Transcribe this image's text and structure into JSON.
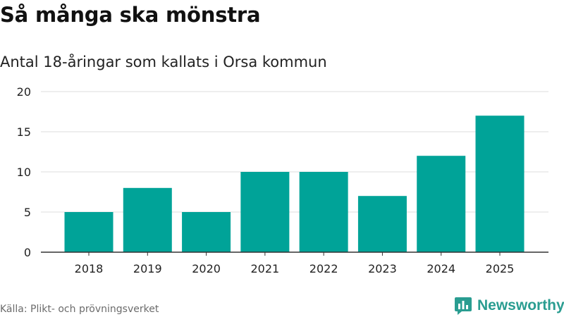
{
  "chart_data": {
    "type": "bar",
    "title": "Så många ska mönstra",
    "subtitle": "Antal 18-åringar som kallats i Orsa kommun",
    "categories": [
      "2018",
      "2019",
      "2020",
      "2021",
      "2022",
      "2023",
      "2024",
      "2025"
    ],
    "values": [
      5,
      8,
      5,
      10,
      10,
      7,
      12,
      17
    ],
    "xlabel": "",
    "ylabel": "",
    "ylim": [
      0,
      20
    ],
    "yticks": [
      0,
      5,
      10,
      15,
      20
    ],
    "grid": true,
    "legend": "none",
    "colors": {
      "bar": "#00a398",
      "grid": "#dddddd",
      "axis": "#333333"
    }
  },
  "footer": {
    "source": "Källa: Plikt- och prövningsverket",
    "brand": "Newsworthy"
  },
  "colors": {
    "brand": "#2a9d91"
  }
}
